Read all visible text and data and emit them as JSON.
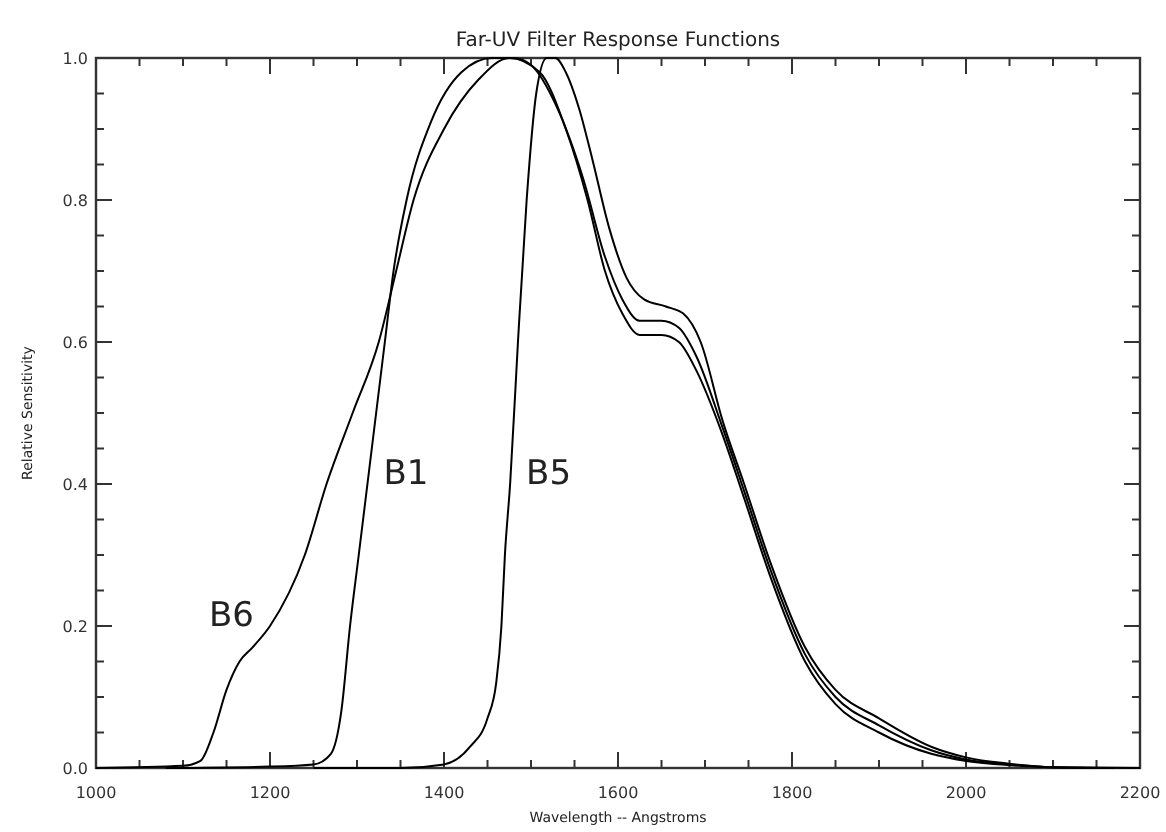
{
  "chart_data": {
    "type": "line",
    "title": "Far-UV Filter Response Functions",
    "xlabel": "Wavelength -- Angstroms",
    "ylabel": "Relative Sensitivity",
    "xlim": [
      1000,
      2200
    ],
    "ylim": [
      0,
      1
    ],
    "xticks": [
      1000,
      {
        "value": 1050,
        "label": null
      },
      {
        "value": 1100,
        "label": null
      },
      {
        "value": 1150,
        "label": null
      },
      1200,
      {
        "value": 1250,
        "label": null
      },
      {
        "value": 1300,
        "label": null
      },
      {
        "value": 1350,
        "label": null
      },
      1400,
      {
        "value": 1450,
        "label": null
      },
      {
        "value": 1500,
        "label": null
      },
      {
        "value": 1550,
        "label": null
      },
      1600,
      {
        "value": 1650,
        "label": null
      },
      {
        "value": 1700,
        "label": null
      },
      {
        "value": 1750,
        "label": null
      },
      1800,
      {
        "value": 1850,
        "label": null
      },
      {
        "value": 1900,
        "label": null
      },
      {
        "value": 1950,
        "label": null
      },
      2000,
      {
        "value": 2050,
        "label": null
      },
      {
        "value": 2100,
        "label": null
      },
      {
        "value": 2150,
        "label": null
      },
      2200
    ],
    "yticks": [
      {
        "value": 0,
        "label": "0.0"
      },
      {
        "value": 0.05,
        "label": null
      },
      {
        "value": 0.1,
        "label": null
      },
      {
        "value": 0.15,
        "label": null
      },
      0.2,
      {
        "value": 0.25,
        "label": null
      },
      {
        "value": 0.3,
        "label": null
      },
      {
        "value": 0.35,
        "label": null
      },
      0.4,
      {
        "value": 0.45,
        "label": null
      },
      {
        "value": 0.5,
        "label": null
      },
      {
        "value": 0.55,
        "label": null
      },
      0.6,
      {
        "value": 0.65,
        "label": null
      },
      {
        "value": 0.7,
        "label": null
      },
      {
        "value": 0.75,
        "label": null
      },
      0.8,
      {
        "value": 0.85,
        "label": null
      },
      {
        "value": 0.9,
        "label": null
      },
      {
        "value": 0.95,
        "label": null
      },
      {
        "value": 1,
        "label": "1.0"
      }
    ],
    "grid": false,
    "line_style": "solid",
    "marker": "none",
    "series": [
      {
        "name": "B6",
        "color": "#000000",
        "x": [
          1000,
          1100,
          1120,
          1135,
          1150,
          1165,
          1180,
          1200,
          1240,
          1265,
          1295,
          1325,
          1345,
          1365,
          1400,
          1440,
          1475,
          1510,
          1540,
          1565,
          1585,
          1605,
          1625,
          1650,
          1670,
          1690,
          1720,
          1745,
          1775,
          1815,
          1850,
          1900,
          1960,
          2000,
          2050,
          2100,
          2200
        ],
        "values": [
          0,
          0.003,
          0.01,
          0.05,
          0.11,
          0.15,
          0.17,
          0.2,
          0.3,
          0.4,
          0.5,
          0.6,
          0.7,
          0.8,
          0.9,
          0.97,
          1.0,
          0.98,
          0.9,
          0.8,
          0.7,
          0.64,
          0.61,
          0.61,
          0.6,
          0.56,
          0.47,
          0.38,
          0.27,
          0.15,
          0.09,
          0.05,
          0.02,
          0.01,
          0.004,
          0.001,
          0
        ]
      },
      {
        "name": "B1",
        "color": "#000000",
        "x": [
          1080,
          1200,
          1250,
          1270,
          1282,
          1292,
          1302,
          1312,
          1322,
          1332,
          1342,
          1357,
          1385,
          1420,
          1455,
          1480,
          1500,
          1530,
          1560,
          1585,
          1605,
          1625,
          1650,
          1670,
          1690,
          1720,
          1745,
          1775,
          1815,
          1850,
          1900,
          1960,
          2000,
          2050,
          2100,
          2170
        ],
        "values": [
          0,
          0.002,
          0.005,
          0.02,
          0.08,
          0.2,
          0.3,
          0.4,
          0.5,
          0.6,
          0.7,
          0.8,
          0.91,
          0.98,
          1.0,
          1.0,
          0.99,
          0.93,
          0.83,
          0.72,
          0.66,
          0.63,
          0.63,
          0.62,
          0.58,
          0.48,
          0.39,
          0.28,
          0.16,
          0.1,
          0.06,
          0.025,
          0.012,
          0.005,
          0.001,
          0
        ]
      },
      {
        "name": "B5",
        "color": "#000000",
        "x": [
          1250,
          1350,
          1400,
          1430,
          1450,
          1460,
          1466,
          1470,
          1476,
          1485,
          1495,
          1506,
          1518,
          1528,
          1540,
          1555,
          1570,
          1590,
          1610,
          1630,
          1655,
          1675,
          1695,
          1720,
          1745,
          1775,
          1815,
          1850,
          1900,
          1960,
          2000,
          2050,
          2100,
          2140
        ],
        "values": [
          0,
          0,
          0.005,
          0.03,
          0.07,
          0.12,
          0.2,
          0.3,
          0.4,
          0.6,
          0.8,
          0.95,
          1.0,
          1.0,
          0.98,
          0.93,
          0.86,
          0.76,
          0.69,
          0.66,
          0.65,
          0.64,
          0.6,
          0.49,
          0.4,
          0.29,
          0.17,
          0.11,
          0.07,
          0.03,
          0.015,
          0.006,
          0.001,
          0
        ]
      }
    ]
  }
}
